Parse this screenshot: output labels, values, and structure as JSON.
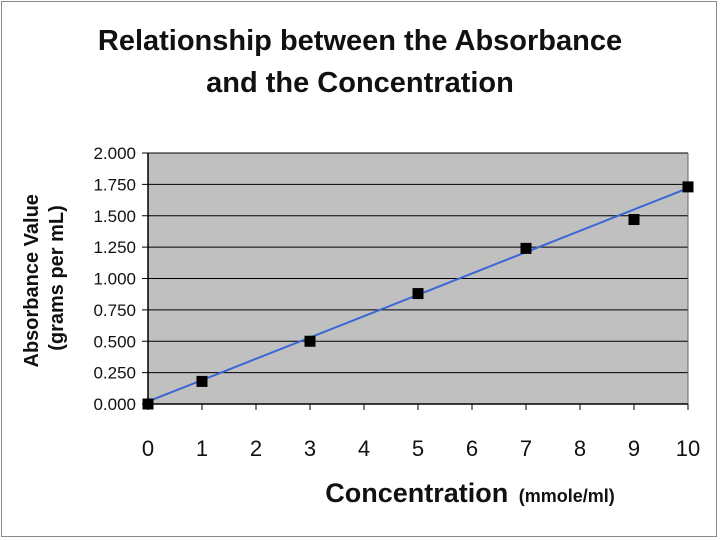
{
  "chart_data": {
    "type": "scatter",
    "title_line1": "Relationship between the Absorbance",
    "title_line2": "and the Concentration",
    "xlabel": "Concentration",
    "xlabel_unit": "(mmole/ml)",
    "ylabel_line1": "Absorbance Value",
    "ylabel_line2": "(grams per mL)",
    "xlim": [
      0,
      10
    ],
    "ylim": [
      0,
      2
    ],
    "x_ticks": [
      0,
      1,
      2,
      3,
      4,
      5,
      6,
      7,
      8,
      9,
      10
    ],
    "y_ticks": [
      "0.000",
      "0.250",
      "0.500",
      "0.750",
      "1.000",
      "1.250",
      "1.500",
      "1.750",
      "2.000"
    ],
    "grid": "horizontal",
    "points": [
      {
        "x": 0,
        "y": 0.0
      },
      {
        "x": 1,
        "y": 0.18
      },
      {
        "x": 3,
        "y": 0.5
      },
      {
        "x": 5,
        "y": 0.88
      },
      {
        "x": 7,
        "y": 1.24
      },
      {
        "x": 9,
        "y": 1.47
      },
      {
        "x": 10,
        "y": 1.73
      }
    ],
    "trendline": {
      "x": [
        0,
        10
      ],
      "y": [
        0.02,
        1.72
      ]
    },
    "colors": {
      "plot_bg": "#c0c0c0",
      "marker": "#000000",
      "trendline": "#3a66d6",
      "grid": "#000000"
    }
  }
}
